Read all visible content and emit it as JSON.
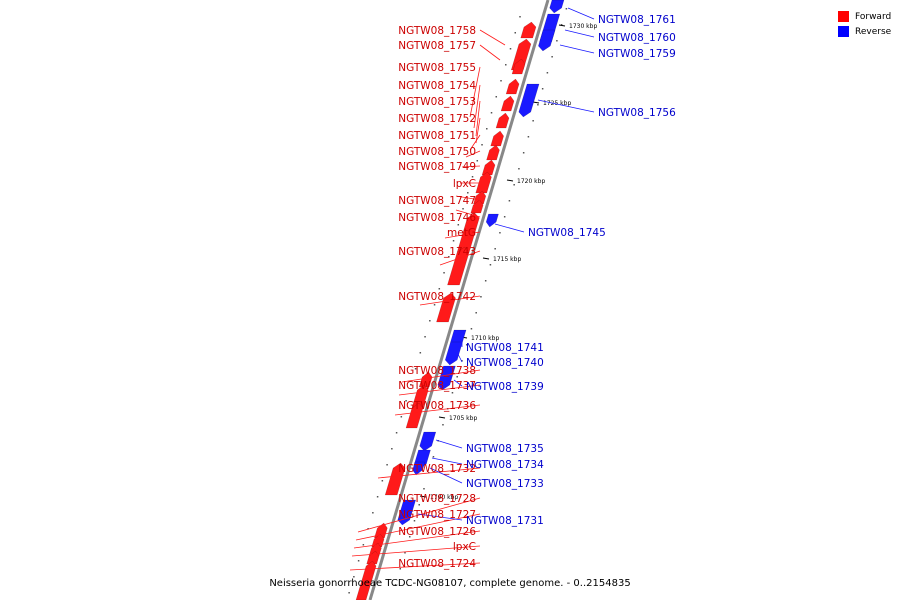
{
  "legend": [
    {
      "label": "Forward",
      "color": "#ff0000"
    },
    {
      "label": "Reverse",
      "color": "#0000ff"
    }
  ],
  "caption": "Neisseria gonorrhoeae TCDC-NG08107, complete genome. - 0..2154835",
  "colors": {
    "forward": "#ff1a1a",
    "reverse": "#1a1aff",
    "axis": "#888888"
  },
  "scale_labels": [
    "1730 kbp",
    "1725 kbp",
    "1720 kbp",
    "1715 kbp",
    "1710 kbp",
    "1705 kbp",
    "1700 kbp"
  ],
  "genes": {
    "forward": [
      "NGTW08_1758",
      "NGTW08_1757",
      "NGTW08_1755",
      "NGTW08_1754",
      "NGTW08_1753",
      "NGTW08_1752",
      "NGTW08_1751",
      "NGTW08_1750",
      "NGTW08_1749",
      "lpxC",
      "NGTW08_1747",
      "NGTW08_1746",
      "metG",
      "NGTW08_1743",
      "NGTW08_1742",
      "NGTW08_1738",
      "NGTW08_1737",
      "NGTW08_1736",
      "NGTW08_1732",
      "NGTW08_1728",
      "NGTW08_1727",
      "NGTW08_1726",
      "lpxC",
      "NGTW08_1724"
    ],
    "reverse": [
      "NGTW08_1761",
      "NGTW08_1760",
      "NGTW08_1759",
      "NGTW08_1756",
      "NGTW08_1745",
      "NGTW08_1741",
      "NGTW08_1740",
      "NGTW08_1739",
      "NGTW08_1735",
      "NGTW08_1734",
      "NGTW08_1733",
      "NGTW08_1731"
    ]
  }
}
